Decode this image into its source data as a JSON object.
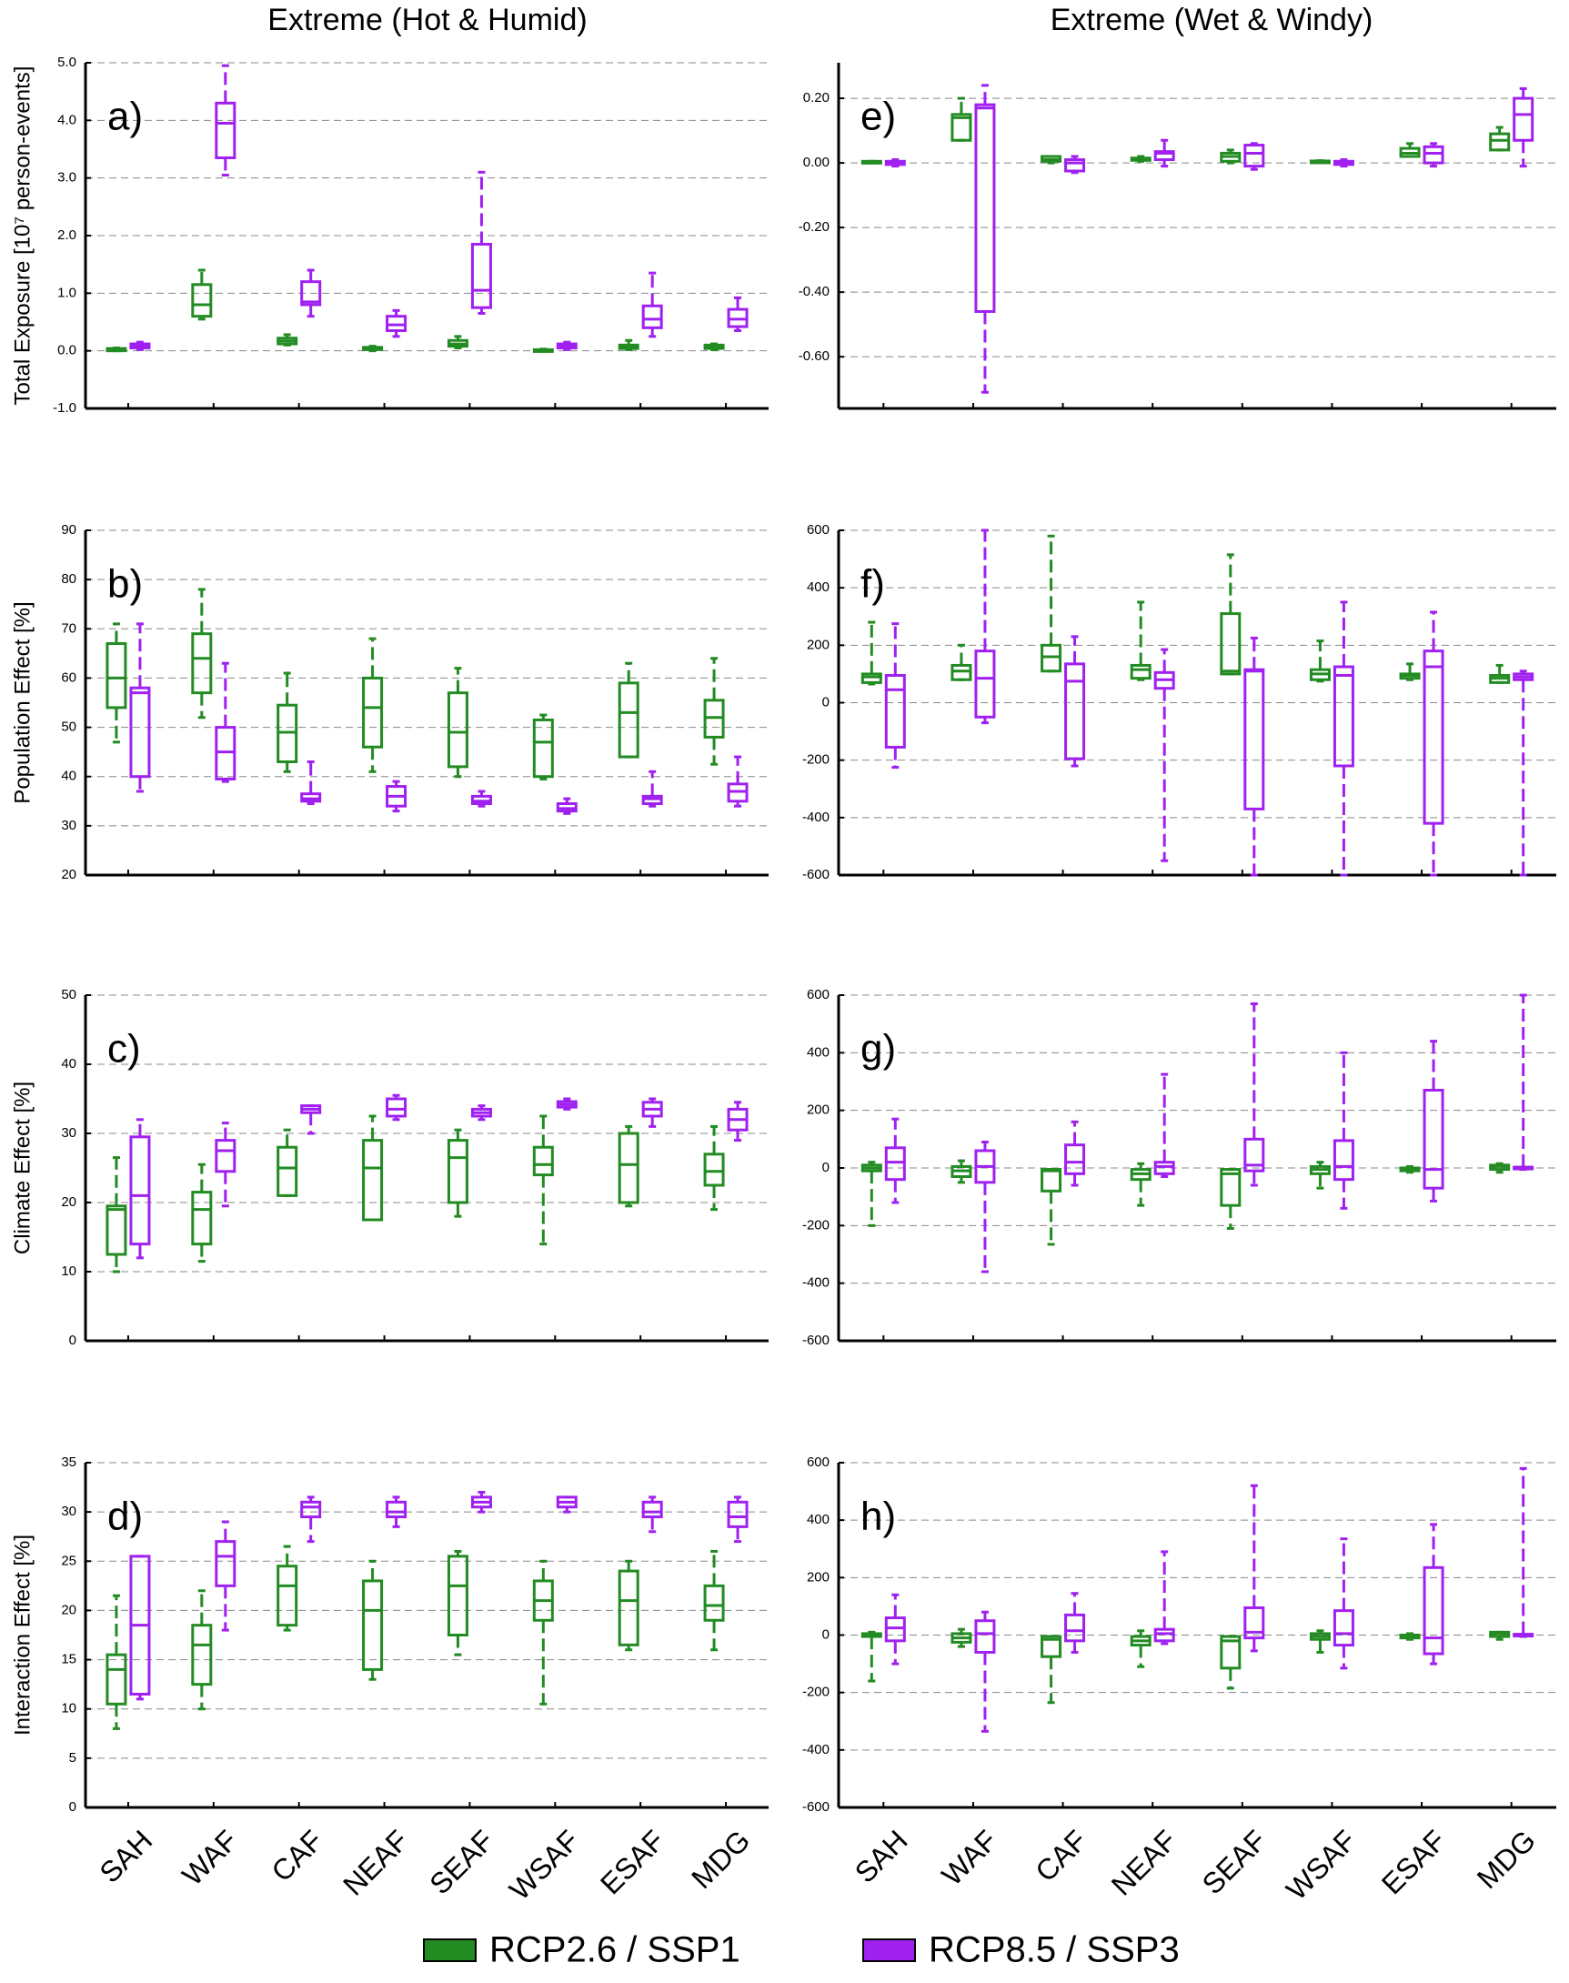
{
  "columns": [
    "Extreme (Hot & Humid)",
    "Extreme (Wet & Windy)"
  ],
  "categories": [
    "SAH",
    "WAF",
    "CAF",
    "NEAF",
    "SEAF",
    "WSAF",
    "ESAF",
    "MDG"
  ],
  "series": [
    {
      "name": "RCP2.6 / SSP1",
      "color": "#228b22"
    },
    {
      "name": "RCP8.5 / SSP3",
      "color": "#a020f0"
    }
  ],
  "chart_data": [
    {
      "type": "box",
      "panel": "a)",
      "ylabel": "Total Exposure [10⁷ person-events]",
      "ylim": [
        -1,
        5
      ],
      "yticks": [
        {
          "value": 5,
          "label": "5.0"
        },
        {
          "value": 4,
          "label": "4.0"
        },
        {
          "value": 3,
          "label": "3.0"
        },
        {
          "value": 2,
          "label": "2.0"
        },
        {
          "value": 1,
          "label": "1.0"
        },
        {
          "value": 0,
          "label": "0.0"
        },
        {
          "value": -1,
          "label": "-1.0"
        }
      ],
      "boxes": [
        [
          [
            0,
            0,
            0.02,
            0.04,
            0.05
          ],
          [
            0.55,
            0.6,
            0.8,
            1.15,
            1.4
          ],
          [
            0.1,
            0.12,
            0.17,
            0.22,
            0.28
          ],
          [
            0,
            0.02,
            0.04,
            0.06,
            0.08
          ],
          [
            0.05,
            0.08,
            0.12,
            0.18,
            0.25
          ],
          [
            0,
            0,
            0.01,
            0.02,
            0.03
          ],
          [
            0.02,
            0.04,
            0.06,
            0.1,
            0.18
          ],
          [
            0.02,
            0.04,
            0.06,
            0.1,
            0.12
          ]
        ],
        [
          [
            0.02,
            0.05,
            0.08,
            0.12,
            0.15
          ],
          [
            3.05,
            3.35,
            3.95,
            4.3,
            4.95
          ],
          [
            0.6,
            0.8,
            0.85,
            1.2,
            1.4
          ],
          [
            0.25,
            0.35,
            0.45,
            0.6,
            0.7
          ],
          [
            0.65,
            0.75,
            1.05,
            1.85,
            3.1
          ],
          [
            0.02,
            0.05,
            0.08,
            0.12,
            0.15
          ],
          [
            0.25,
            0.4,
            0.55,
            0.78,
            1.35
          ],
          [
            0.35,
            0.42,
            0.55,
            0.72,
            0.92
          ]
        ]
      ]
    },
    {
      "type": "box",
      "panel": "e)",
      "ylim": [
        -0.76,
        0.31
      ],
      "yticks": [
        {
          "value": 0.2,
          "label": "0.20"
        },
        {
          "value": 0,
          "label": "0.00"
        },
        {
          "value": -0.2,
          "label": "-0.20"
        },
        {
          "value": -0.4,
          "label": "-0.40"
        },
        {
          "value": -0.6,
          "label": "-0.60"
        }
      ],
      "boxes": [
        [
          [
            0,
            0,
            0,
            0.005,
            0.005
          ],
          [
            0.07,
            0.07,
            0.14,
            0.15,
            0.2
          ],
          [
            0,
            0.005,
            0.01,
            0.02,
            0.02
          ],
          [
            0.005,
            0.008,
            0.01,
            0.015,
            0.02
          ],
          [
            0,
            0.005,
            0.02,
            0.03,
            0.04
          ],
          [
            0.003,
            0.004,
            0.005,
            0.006,
            0.007
          ],
          [
            0.02,
            0.02,
            0.03,
            0.045,
            0.06
          ],
          [
            0.04,
            0.04,
            0.07,
            0.09,
            0.11
          ]
        ],
        [
          [
            -0.01,
            -0.005,
            0,
            0.005,
            0.01
          ],
          [
            -0.71,
            -0.46,
            0.17,
            0.18,
            0.24
          ],
          [
            -0.03,
            -0.025,
            0,
            0.01,
            0.02
          ],
          [
            -0.01,
            0.01,
            0.03,
            0.035,
            0.07
          ],
          [
            -0.02,
            -0.01,
            0.03,
            0.055,
            0.06
          ],
          [
            -0.01,
            -0.005,
            0,
            0.005,
            0.01
          ],
          [
            -0.01,
            0,
            0.03,
            0.05,
            0.06
          ],
          [
            -0.01,
            0.07,
            0.15,
            0.2,
            0.23
          ]
        ]
      ]
    },
    {
      "type": "box",
      "panel": "b)",
      "ylabel": "Population Effect [%]",
      "ylim": [
        20,
        90
      ],
      "yticks": [
        90,
        80,
        70,
        60,
        50,
        40,
        30,
        20
      ],
      "boxes": [
        [
          [
            47,
            54,
            60,
            67,
            71
          ],
          [
            52,
            57,
            64,
            69,
            78
          ],
          [
            41,
            43,
            49,
            54.5,
            61
          ],
          [
            41,
            46,
            54,
            60,
            68
          ],
          [
            40,
            42,
            49,
            57,
            62
          ],
          [
            39.5,
            40,
            47,
            51.5,
            52.5
          ],
          [
            44,
            44,
            53,
            59,
            63
          ],
          [
            42.5,
            48,
            52,
            55.5,
            64
          ]
        ],
        [
          [
            37,
            40,
            57,
            58,
            71
          ],
          [
            39,
            39.5,
            45,
            50,
            63
          ],
          [
            34.5,
            35,
            35.5,
            36.5,
            43
          ],
          [
            33,
            34,
            36,
            38,
            39
          ],
          [
            34,
            34.5,
            35,
            36,
            37
          ],
          [
            32.5,
            33,
            33.5,
            34.5,
            35.5
          ],
          [
            34,
            34.5,
            35.5,
            36,
            41
          ],
          [
            34,
            35,
            37,
            38.5,
            44
          ]
        ]
      ]
    },
    {
      "type": "box",
      "panel": "f)",
      "ylim": [
        -600,
        600
      ],
      "yticks": [
        600,
        400,
        200,
        0,
        -200,
        -400,
        -600
      ],
      "boxes": [
        [
          [
            65,
            70,
            90,
            100,
            280
          ],
          [
            80,
            80,
            110,
            130,
            200
          ],
          [
            110,
            110,
            160,
            200,
            580
          ],
          [
            80,
            85,
            115,
            130,
            350
          ],
          [
            100,
            100,
            110,
            310,
            515
          ],
          [
            75,
            80,
            100,
            115,
            215
          ],
          [
            80,
            85,
            95,
            100,
            135
          ],
          [
            70,
            70,
            85,
            95,
            130
          ]
        ],
        [
          [
            -225,
            -155,
            45,
            95,
            275
          ],
          [
            -70,
            -50,
            85,
            180,
            600
          ],
          [
            -220,
            -195,
            75,
            135,
            230
          ],
          [
            -550,
            50,
            80,
            105,
            185
          ],
          [
            -600,
            -370,
            110,
            115,
            225
          ],
          [
            -600,
            -220,
            95,
            125,
            350
          ],
          [
            -600,
            -420,
            125,
            180,
            315
          ],
          [
            -600,
            80,
            90,
            100,
            110
          ]
        ]
      ]
    },
    {
      "type": "box",
      "panel": "c)",
      "ylabel": "Climate Effect [%]",
      "ylim": [
        0,
        50
      ],
      "yticks": [
        50,
        40,
        30,
        20,
        10,
        0
      ],
      "boxes": [
        [
          [
            10,
            12.5,
            19,
            19.5,
            26.5
          ],
          [
            11.5,
            14,
            19,
            21.5,
            25.5
          ],
          [
            21,
            21,
            25,
            28,
            30.5
          ],
          [
            17.5,
            17.5,
            25,
            29,
            32.5
          ],
          [
            18,
            20,
            26.5,
            29,
            30.5
          ],
          [
            14,
            24,
            25.5,
            28,
            32.5
          ],
          [
            19.5,
            20,
            25.5,
            30,
            31
          ],
          [
            19,
            22.5,
            24.5,
            27,
            31
          ]
        ],
        [
          [
            12,
            14,
            21,
            29.5,
            32
          ],
          [
            19.5,
            24.5,
            27.5,
            29,
            31.5
          ],
          [
            30,
            33,
            33.5,
            34,
            34
          ],
          [
            32,
            32.5,
            33.5,
            35,
            35.5
          ],
          [
            32,
            32.5,
            33,
            33.5,
            34
          ],
          [
            33.5,
            33.8,
            34.2,
            34.6,
            35
          ],
          [
            31,
            32.5,
            33.5,
            34.5,
            35
          ],
          [
            29,
            30.5,
            32,
            33.5,
            34.5
          ]
        ]
      ]
    },
    {
      "type": "box",
      "panel": "g)",
      "ylim": [
        -600,
        600
      ],
      "yticks": [
        600,
        400,
        200,
        0,
        -200,
        -400,
        -600
      ],
      "boxes": [
        [
          [
            -200,
            -10,
            0,
            10,
            20
          ],
          [
            -50,
            -30,
            -10,
            5,
            25
          ],
          [
            -265,
            -80,
            -10,
            -5,
            -5
          ],
          [
            -130,
            -40,
            -20,
            -5,
            15
          ],
          [
            -210,
            -130,
            -20,
            -5,
            -5
          ],
          [
            -70,
            -20,
            -5,
            5,
            20
          ],
          [
            -15,
            -10,
            -5,
            0,
            5
          ],
          [
            -15,
            -5,
            5,
            10,
            15
          ]
        ],
        [
          [
            -120,
            -40,
            20,
            70,
            170
          ],
          [
            -360,
            -50,
            5,
            60,
            90
          ],
          [
            -60,
            -20,
            20,
            80,
            160
          ],
          [
            -30,
            -20,
            5,
            20,
            325
          ],
          [
            -60,
            -10,
            10,
            100,
            570
          ],
          [
            -140,
            -40,
            5,
            95,
            400
          ],
          [
            -115,
            -70,
            -5,
            270,
            440
          ],
          [
            -5,
            -3,
            0,
            3,
            600
          ]
        ]
      ]
    },
    {
      "type": "box",
      "panel": "d)",
      "ylabel": "Interaction Effect [%]",
      "ylim": [
        0,
        35
      ],
      "yticks": [
        35,
        30,
        25,
        20,
        15,
        10,
        5,
        0
      ],
      "boxes": [
        [
          [
            8,
            10.5,
            14,
            15.5,
            21.5
          ],
          [
            10,
            12.5,
            16.5,
            18.5,
            22
          ],
          [
            18,
            18.5,
            22.5,
            24.5,
            26.5
          ],
          [
            13,
            14,
            20,
            23,
            25
          ],
          [
            15.5,
            17.5,
            22.5,
            25.5,
            26
          ],
          [
            10.5,
            19,
            21,
            23,
            25
          ],
          [
            16,
            16.5,
            21,
            24,
            25
          ],
          [
            16,
            19,
            20.5,
            22.5,
            26
          ]
        ],
        [
          [
            11,
            11.5,
            18.5,
            25.5,
            25.5
          ],
          [
            18,
            22.5,
            25.5,
            27,
            29
          ],
          [
            27,
            29.5,
            30.5,
            31,
            31.5
          ],
          [
            28.5,
            29.5,
            30,
            31,
            31.5
          ],
          [
            30,
            30.5,
            31,
            31.5,
            32
          ],
          [
            30,
            30.5,
            31,
            31.5,
            31.5
          ],
          [
            28,
            29.5,
            30,
            31,
            31.5
          ],
          [
            27,
            28.5,
            29.5,
            31,
            31.5
          ]
        ]
      ]
    },
    {
      "type": "box",
      "panel": "h)",
      "ylim": [
        -600,
        600
      ],
      "yticks": [
        600,
        400,
        200,
        0,
        -200,
        -400,
        -600
      ],
      "boxes": [
        [
          [
            -160,
            -5,
            0,
            5,
            10
          ],
          [
            -40,
            -25,
            -10,
            5,
            20
          ],
          [
            -235,
            -75,
            -15,
            -5,
            -5
          ],
          [
            -110,
            -35,
            -20,
            -5,
            15
          ],
          [
            -185,
            -115,
            -20,
            -5,
            -5
          ],
          [
            -60,
            -15,
            -5,
            5,
            15
          ],
          [
            -15,
            -10,
            -5,
            0,
            5
          ],
          [
            -15,
            -5,
            5,
            10,
            10
          ]
        ],
        [
          [
            -100,
            -20,
            25,
            60,
            140
          ],
          [
            -335,
            -60,
            5,
            50,
            80
          ],
          [
            -60,
            -20,
            15,
            70,
            145
          ],
          [
            -30,
            -20,
            5,
            20,
            290
          ],
          [
            -55,
            -10,
            10,
            95,
            520
          ],
          [
            -115,
            -35,
            5,
            85,
            335
          ],
          [
            -100,
            -65,
            -10,
            235,
            385
          ],
          [
            -5,
            -3,
            0,
            3,
            580
          ]
        ]
      ]
    }
  ]
}
